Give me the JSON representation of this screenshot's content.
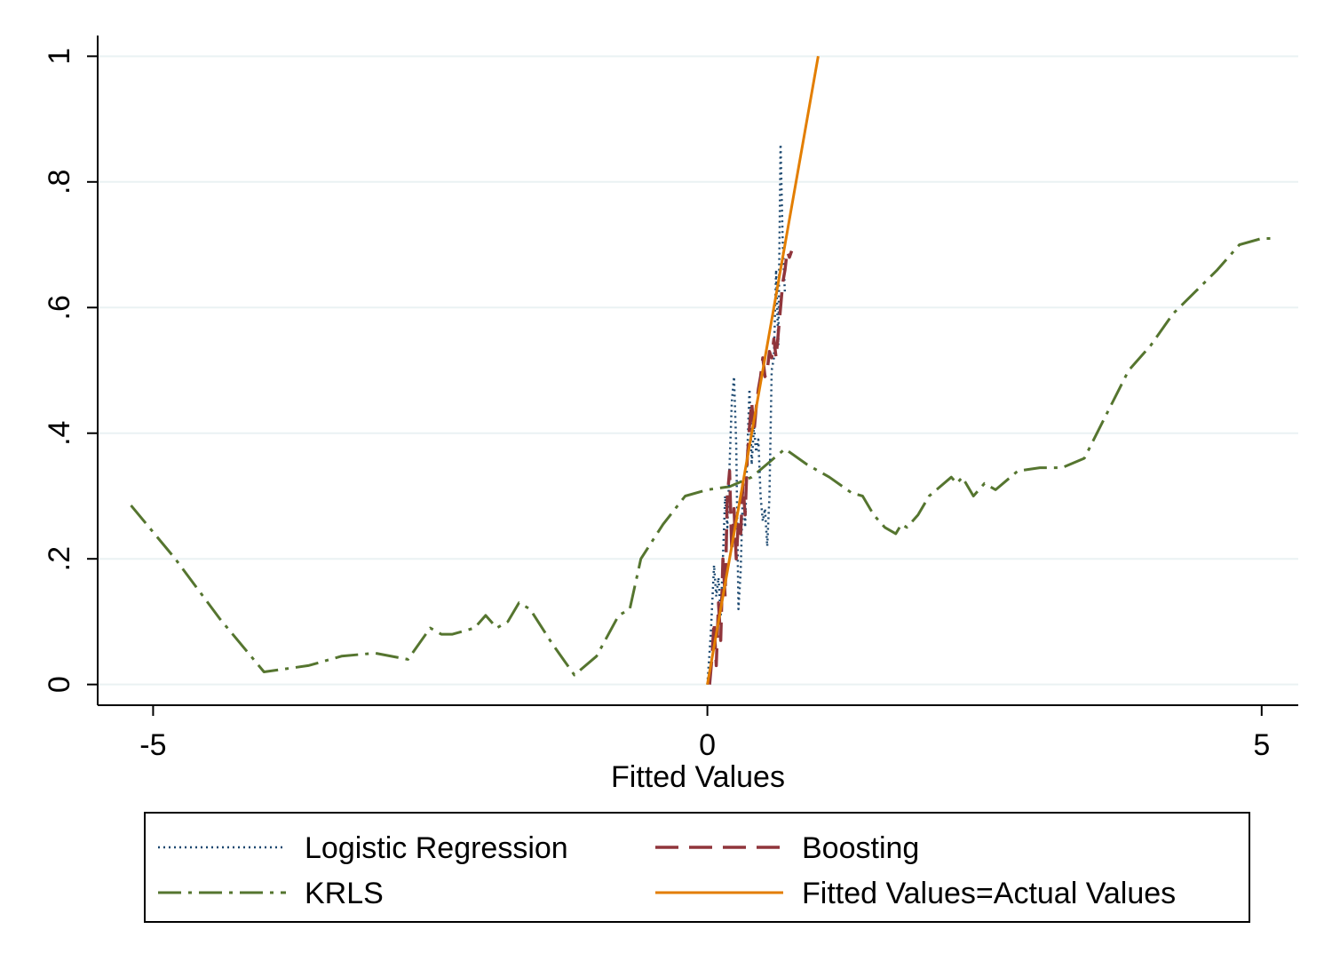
{
  "chart_data": {
    "type": "line",
    "title": "",
    "xlabel": "Fitted Values",
    "ylabel": "",
    "xlim": [
      -5.5,
      5.33
    ],
    "ylim": [
      -0.033,
      1.033
    ],
    "xticks": [
      {
        "value": -5,
        "label": "-5"
      },
      {
        "value": 0,
        "label": "0"
      },
      {
        "value": 5,
        "label": "5"
      }
    ],
    "yticks": [
      {
        "value": 0,
        "label": "0"
      },
      {
        "value": 0.2,
        "label": ".2"
      },
      {
        "value": 0.4,
        "label": ".4"
      },
      {
        "value": 0.6,
        "label": ".6"
      },
      {
        "value": 0.8,
        "label": ".8"
      },
      {
        "value": 1,
        "label": "1"
      }
    ],
    "grid": true,
    "legend_position": "bottom",
    "colors": {
      "logistic": "#1a476f",
      "boosting": "#90353b",
      "krls": "#55752f",
      "identity": "#e37e00",
      "grid": "#eaf2f3"
    },
    "series": [
      {
        "name": "Logistic Regression",
        "key": "logistic",
        "x": [
          0.0,
          0.03,
          0.06,
          0.08,
          0.1,
          0.12,
          0.14,
          0.16,
          0.18,
          0.2,
          0.22,
          0.24,
          0.26,
          0.28,
          0.3,
          0.32,
          0.34,
          0.36,
          0.38,
          0.4,
          0.42,
          0.44,
          0.46,
          0.48,
          0.5,
          0.52,
          0.54,
          0.56,
          0.58,
          0.6,
          0.62,
          0.64,
          0.66,
          0.68,
          0.7
        ],
        "y": [
          0.0,
          0.08,
          0.19,
          0.14,
          0.17,
          0.11,
          0.2,
          0.3,
          0.25,
          0.35,
          0.45,
          0.49,
          0.38,
          0.12,
          0.18,
          0.31,
          0.25,
          0.37,
          0.47,
          0.35,
          0.41,
          0.37,
          0.39,
          0.3,
          0.26,
          0.28,
          0.22,
          0.3,
          0.5,
          0.52,
          0.66,
          0.54,
          0.86,
          0.7,
          0.62
        ]
      },
      {
        "name": "Boosting",
        "key": "boosting",
        "x": [
          0.02,
          0.04,
          0.06,
          0.08,
          0.1,
          0.12,
          0.14,
          0.16,
          0.18,
          0.2,
          0.22,
          0.24,
          0.26,
          0.28,
          0.3,
          0.32,
          0.34,
          0.36,
          0.38,
          0.4,
          0.42,
          0.44,
          0.46,
          0.48,
          0.5,
          0.52,
          0.54,
          0.56,
          0.58,
          0.6,
          0.62,
          0.64,
          0.66,
          0.68,
          0.7,
          0.72,
          0.74,
          0.76
        ],
        "y": [
          0.0,
          0.04,
          0.1,
          0.03,
          0.13,
          0.07,
          0.2,
          0.14,
          0.3,
          0.34,
          0.21,
          0.28,
          0.2,
          0.26,
          0.24,
          0.32,
          0.27,
          0.36,
          0.41,
          0.45,
          0.4,
          0.44,
          0.47,
          0.49,
          0.52,
          0.49,
          0.5,
          0.53,
          0.52,
          0.55,
          0.52,
          0.56,
          0.6,
          0.64,
          0.66,
          0.69,
          0.68,
          0.69
        ]
      },
      {
        "name": "KRLS",
        "key": "krls",
        "x": [
          -5.2,
          -4.8,
          -4.4,
          -4.0,
          -3.6,
          -3.5,
          -3.3,
          -3.0,
          -2.7,
          -2.5,
          -2.4,
          -2.3,
          -2.1,
          -2.0,
          -1.9,
          -1.8,
          -1.7,
          -1.6,
          -1.4,
          -1.2,
          -1.0,
          -0.8,
          -0.7,
          -0.6,
          -0.4,
          -0.2,
          0.0,
          0.2,
          0.4,
          0.6,
          0.7,
          0.9,
          1.1,
          1.3,
          1.4,
          1.5,
          1.6,
          1.7,
          1.75,
          1.8,
          1.9,
          2.0,
          2.2,
          2.25,
          2.3,
          2.4,
          2.5,
          2.6,
          2.8,
          3.0,
          3.2,
          3.4,
          3.6,
          3.8,
          4.0,
          4.2,
          4.4,
          4.6,
          4.8,
          5.0,
          5.1
        ],
        "y": [
          0.285,
          0.2,
          0.105,
          0.02,
          0.03,
          0.035,
          0.045,
          0.05,
          0.04,
          0.09,
          0.08,
          0.08,
          0.09,
          0.11,
          0.09,
          0.1,
          0.13,
          0.12,
          0.065,
          0.015,
          0.045,
          0.11,
          0.12,
          0.2,
          0.255,
          0.3,
          0.31,
          0.315,
          0.33,
          0.36,
          0.375,
          0.35,
          0.33,
          0.305,
          0.3,
          0.27,
          0.25,
          0.24,
          0.255,
          0.25,
          0.27,
          0.3,
          0.33,
          0.32,
          0.33,
          0.3,
          0.32,
          0.31,
          0.34,
          0.345,
          0.345,
          0.36,
          0.43,
          0.5,
          0.54,
          0.59,
          0.625,
          0.66,
          0.7,
          0.71,
          0.71
        ]
      },
      {
        "name": "Fitted Values=Actual Values",
        "key": "identity",
        "x": [
          0,
          1
        ],
        "y": [
          0,
          1
        ]
      }
    ]
  }
}
